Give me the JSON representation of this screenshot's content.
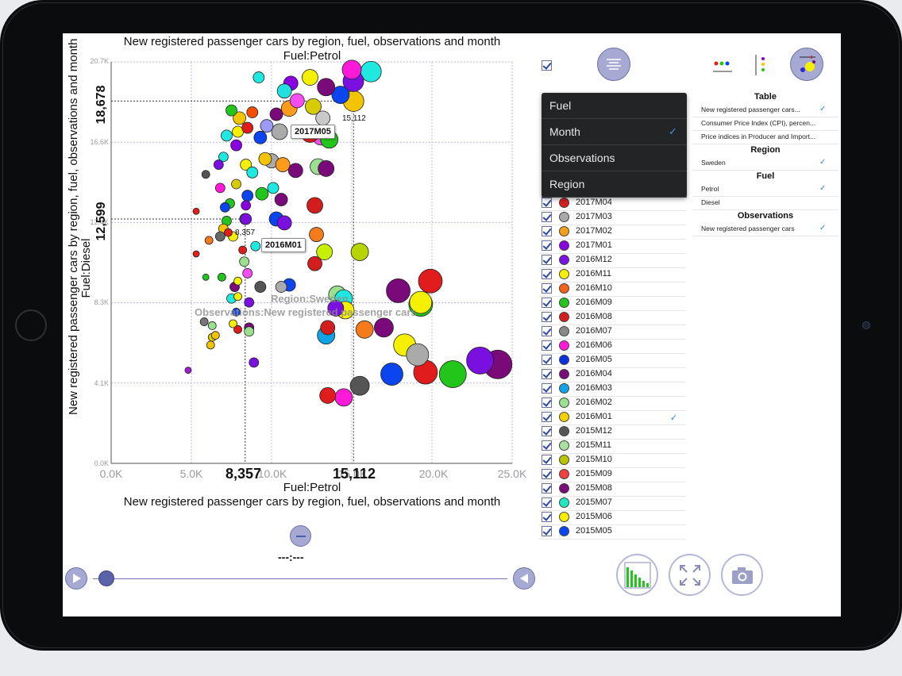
{
  "chart_data": {
    "type": "scatter",
    "title": "New registered passenger cars by region, fuel, observations and month",
    "subtitle": "Fuel:Petrol",
    "xlabel": "Fuel:Petrol",
    "xlabel_title": "New registered passenger cars by region, fuel, observations and month",
    "ylabel": "New registered passenger cars by region, fuel, observations and month",
    "ylabel_sub": "Fuel:Diesel",
    "xlim": [
      0,
      25000
    ],
    "ylim": [
      0,
      20700
    ],
    "x_ticks": [
      "0.0K",
      "5.0K",
      "10.0K",
      "15.0K",
      "20.0K",
      "25.0K"
    ],
    "y_ticks": [
      "0.0K",
      "4.1K",
      "8.3K",
      "12.4K",
      "16.6K",
      "20.7K"
    ],
    "grid": true,
    "crosshair_x": [
      "8,357",
      "15,112"
    ],
    "crosshair_y": [
      "18,678",
      "12,599"
    ],
    "watermark": [
      "Region:Sweden",
      "Observations:New registered passenger cars"
    ],
    "callouts": [
      "2017M05",
      "2016M01"
    ],
    "point_labels": [
      "15,112",
      "8,357"
    ],
    "points": [
      {
        "x": 15112,
        "y": 18678,
        "size": 13,
        "color": "#f5c400"
      },
      {
        "x": 8357,
        "y": 12599,
        "size": 7,
        "color": "#9ae08f"
      },
      {
        "x": 12400,
        "y": 17000,
        "size": 11,
        "color": "#e11c1c"
      },
      {
        "x": 15000,
        "y": 20300,
        "size": 12,
        "color": "#ff1ad9"
      },
      {
        "x": 16200,
        "y": 20200,
        "size": 13,
        "color": "#1fe8e0"
      },
      {
        "x": 15100,
        "y": 19700,
        "size": 13,
        "color": "#7a10e0"
      },
      {
        "x": 14300,
        "y": 19000,
        "size": 11,
        "color": "#0a45f0"
      },
      {
        "x": 13400,
        "y": 19400,
        "size": 11,
        "color": "#7a0a7a"
      },
      {
        "x": 12400,
        "y": 19900,
        "size": 10,
        "color": "#f5f000"
      },
      {
        "x": 11200,
        "y": 19600,
        "size": 9,
        "color": "#8a00e0"
      },
      {
        "x": 10800,
        "y": 19200,
        "size": 9,
        "color": "#22e0e0"
      },
      {
        "x": 11600,
        "y": 18700,
        "size": 9,
        "color": "#f54ef0"
      },
      {
        "x": 9200,
        "y": 19900,
        "size": 7,
        "color": "#1fe8e0"
      },
      {
        "x": 12600,
        "y": 18400,
        "size": 10,
        "color": "#d6cc00"
      },
      {
        "x": 13200,
        "y": 17800,
        "size": 9,
        "color": "#c9c9c9"
      },
      {
        "x": 13100,
        "y": 16900,
        "size": 12,
        "color": "#f54ef0"
      },
      {
        "x": 13600,
        "y": 16700,
        "size": 11,
        "color": "#22c61a"
      },
      {
        "x": 11100,
        "y": 18300,
        "size": 10,
        "color": "#ff9b1a"
      },
      {
        "x": 10300,
        "y": 18000,
        "size": 8,
        "color": "#7a0a7a"
      },
      {
        "x": 10500,
        "y": 17100,
        "size": 10,
        "color": "#aaaaaa"
      },
      {
        "x": 9700,
        "y": 17400,
        "size": 8,
        "color": "#9b9bff"
      },
      {
        "x": 8000,
        "y": 17800,
        "size": 8,
        "color": "#f5c400"
      },
      {
        "x": 8800,
        "y": 18100,
        "size": 7,
        "color": "#f54e00"
      },
      {
        "x": 7500,
        "y": 18200,
        "size": 7,
        "color": "#22c61a"
      },
      {
        "x": 7900,
        "y": 17100,
        "size": 7,
        "color": "#f5f000"
      },
      {
        "x": 7200,
        "y": 16900,
        "size": 7,
        "color": "#1fe8e0"
      },
      {
        "x": 8500,
        "y": 17300,
        "size": 7,
        "color": "#e11c1c"
      },
      {
        "x": 9300,
        "y": 16800,
        "size": 8,
        "color": "#0a45f0"
      },
      {
        "x": 7800,
        "y": 16400,
        "size": 7,
        "color": "#8a00e0"
      },
      {
        "x": 9600,
        "y": 15700,
        "size": 8,
        "color": "#f5c400"
      },
      {
        "x": 10000,
        "y": 15600,
        "size": 9,
        "color": "#aaaaaa"
      },
      {
        "x": 10700,
        "y": 15400,
        "size": 9,
        "color": "#ff9b1a"
      },
      {
        "x": 11500,
        "y": 15100,
        "size": 9,
        "color": "#7a0a7a"
      },
      {
        "x": 12900,
        "y": 15300,
        "size": 10,
        "color": "#9ae08f"
      },
      {
        "x": 13400,
        "y": 15200,
        "size": 10,
        "color": "#7a0a7a"
      },
      {
        "x": 8400,
        "y": 15400,
        "size": 7,
        "color": "#f5f000"
      },
      {
        "x": 8800,
        "y": 15000,
        "size": 7,
        "color": "#1fe8e0"
      },
      {
        "x": 7000,
        "y": 15800,
        "size": 6,
        "color": "#1fe8e0"
      },
      {
        "x": 6700,
        "y": 15400,
        "size": 6,
        "color": "#7a10e0"
      },
      {
        "x": 5900,
        "y": 14900,
        "size": 5,
        "color": "#555555"
      },
      {
        "x": 6800,
        "y": 14200,
        "size": 6,
        "color": "#ff1ad9"
      },
      {
        "x": 7800,
        "y": 14400,
        "size": 6,
        "color": "#d6cc00"
      },
      {
        "x": 10100,
        "y": 14200,
        "size": 7,
        "color": "#1fe8e0"
      },
      {
        "x": 9400,
        "y": 13900,
        "size": 8,
        "color": "#22c61a"
      },
      {
        "x": 10600,
        "y": 13600,
        "size": 8,
        "color": "#7a0a7a"
      },
      {
        "x": 12700,
        "y": 13300,
        "size": 10,
        "color": "#d41e1e"
      },
      {
        "x": 8500,
        "y": 13800,
        "size": 7,
        "color": "#0a45f0"
      },
      {
        "x": 7400,
        "y": 13400,
        "size": 6,
        "color": "#22c61a"
      },
      {
        "x": 7100,
        "y": 13200,
        "size": 6,
        "color": "#0a45f0"
      },
      {
        "x": 8400,
        "y": 13300,
        "size": 6,
        "color": "#8a00e0"
      },
      {
        "x": 5300,
        "y": 13000,
        "size": 4,
        "color": "#e11c1c"
      },
      {
        "x": 10300,
        "y": 12600,
        "size": 9,
        "color": "#0a45f0"
      },
      {
        "x": 10800,
        "y": 12400,
        "size": 9,
        "color": "#7a10e0"
      },
      {
        "x": 8400,
        "y": 12600,
        "size": 7,
        "color": "#7a10e0"
      },
      {
        "x": 7200,
        "y": 12500,
        "size": 6,
        "color": "#22c61a"
      },
      {
        "x": 7000,
        "y": 12100,
        "size": 6,
        "color": "#f5c400"
      },
      {
        "x": 6800,
        "y": 11700,
        "size": 6,
        "color": "#666666"
      },
      {
        "x": 7600,
        "y": 11700,
        "size": 6,
        "color": "#f5f000"
      },
      {
        "x": 6100,
        "y": 11500,
        "size": 5,
        "color": "#f57a1a"
      },
      {
        "x": 7300,
        "y": 11900,
        "size": 5,
        "color": "#e11c1c"
      },
      {
        "x": 12800,
        "y": 11800,
        "size": 9,
        "color": "#f57a1a"
      },
      {
        "x": 8200,
        "y": 11000,
        "size": 5,
        "color": "#e11c1c"
      },
      {
        "x": 9000,
        "y": 11200,
        "size": 6,
        "color": "#1fe8e0"
      },
      {
        "x": 13300,
        "y": 10900,
        "size": 10,
        "color": "#c7f000"
      },
      {
        "x": 15500,
        "y": 10900,
        "size": 11,
        "color": "#b8d400"
      },
      {
        "x": 5300,
        "y": 10800,
        "size": 4,
        "color": "#e11c1c"
      },
      {
        "x": 8300,
        "y": 10400,
        "size": 6,
        "color": "#9ae08f"
      },
      {
        "x": 12700,
        "y": 10300,
        "size": 9,
        "color": "#d41e1e"
      },
      {
        "x": 8500,
        "y": 9800,
        "size": 6,
        "color": "#f54ef0"
      },
      {
        "x": 5900,
        "y": 9600,
        "size": 4,
        "color": "#22c61a"
      },
      {
        "x": 6900,
        "y": 9600,
        "size": 5,
        "color": "#22c61a"
      },
      {
        "x": 7900,
        "y": 9400,
        "size": 5,
        "color": "#f5f000"
      },
      {
        "x": 10600,
        "y": 9100,
        "size": 7,
        "color": "#aaaaaa"
      },
      {
        "x": 11100,
        "y": 9200,
        "size": 8,
        "color": "#0a45f0"
      },
      {
        "x": 9300,
        "y": 9100,
        "size": 7,
        "color": "#555555"
      },
      {
        "x": 7700,
        "y": 9100,
        "size": 6,
        "color": "#7a0a7a"
      },
      {
        "x": 7500,
        "y": 8500,
        "size": 6,
        "color": "#1fe8e0"
      },
      {
        "x": 8600,
        "y": 8300,
        "size": 6,
        "color": "#7a10e0"
      },
      {
        "x": 7900,
        "y": 8600,
        "size": 5,
        "color": "#f5f000"
      },
      {
        "x": 14100,
        "y": 8700,
        "size": 11,
        "color": "#9ae08f"
      },
      {
        "x": 14500,
        "y": 8500,
        "size": 11,
        "color": "#1fe8e0"
      },
      {
        "x": 19900,
        "y": 9400,
        "size": 15,
        "color": "#e11c1c"
      },
      {
        "x": 17900,
        "y": 8900,
        "size": 15,
        "color": "#7a0a7a"
      },
      {
        "x": 19300,
        "y": 8200,
        "size": 15,
        "color": "#22c61a"
      },
      {
        "x": 19300,
        "y": 8300,
        "size": 14,
        "color": "#f5f000"
      },
      {
        "x": 14600,
        "y": 7900,
        "size": 11,
        "color": "#f5f000"
      },
      {
        "x": 14000,
        "y": 8000,
        "size": 10,
        "color": "#7a10e0"
      },
      {
        "x": 7800,
        "y": 7800,
        "size": 5,
        "color": "#0a45f0"
      },
      {
        "x": 5800,
        "y": 7300,
        "size": 5,
        "color": "#777777"
      },
      {
        "x": 6300,
        "y": 7100,
        "size": 5,
        "color": "#9ae08f"
      },
      {
        "x": 7600,
        "y": 7200,
        "size": 5,
        "color": "#f5f000"
      },
      {
        "x": 7900,
        "y": 6900,
        "size": 5,
        "color": "#e11c1c"
      },
      {
        "x": 8600,
        "y": 7000,
        "size": 6,
        "color": "#7a0a7a"
      },
      {
        "x": 8600,
        "y": 6800,
        "size": 6,
        "color": "#9ae08f"
      },
      {
        "x": 15800,
        "y": 6900,
        "size": 11,
        "color": "#f57a1a"
      },
      {
        "x": 17000,
        "y": 7000,
        "size": 12,
        "color": "#7a0a7a"
      },
      {
        "x": 13500,
        "y": 7000,
        "size": 9,
        "color": "#d41e1e"
      },
      {
        "x": 13400,
        "y": 6600,
        "size": 11,
        "color": "#11a3e8"
      },
      {
        "x": 6300,
        "y": 6500,
        "size": 5,
        "color": "#d6cc00"
      },
      {
        "x": 6500,
        "y": 6600,
        "size": 5,
        "color": "#f5c400"
      },
      {
        "x": 6200,
        "y": 6100,
        "size": 5,
        "color": "#f5c400"
      },
      {
        "x": 18300,
        "y": 6100,
        "size": 14,
        "color": "#f5f000"
      },
      {
        "x": 19100,
        "y": 5600,
        "size": 14,
        "color": "#aaaaaa"
      },
      {
        "x": 19600,
        "y": 4700,
        "size": 15,
        "color": "#e11c1c"
      },
      {
        "x": 17500,
        "y": 4600,
        "size": 14,
        "color": "#0a45f0"
      },
      {
        "x": 21300,
        "y": 4600,
        "size": 17,
        "color": "#22c61a"
      },
      {
        "x": 23000,
        "y": 5300,
        "size": 17,
        "color": "#7a10e0"
      },
      {
        "x": 24100,
        "y": 5100,
        "size": 18,
        "color": "#7a0a7a"
      },
      {
        "x": 8900,
        "y": 5200,
        "size": 6,
        "color": "#7a10e0"
      },
      {
        "x": 4800,
        "y": 4800,
        "size": 4,
        "color": "#a020d0"
      },
      {
        "x": 15500,
        "y": 4000,
        "size": 12,
        "color": "#555555"
      },
      {
        "x": 13500,
        "y": 3500,
        "size": 10,
        "color": "#e11c1c"
      },
      {
        "x": 14500,
        "y": 3400,
        "size": 11,
        "color": "#ff1ad9"
      }
    ]
  },
  "dropdown": {
    "items": [
      {
        "label": "Fuel",
        "checked": false
      },
      {
        "label": "Month",
        "checked": true
      },
      {
        "label": "Observations",
        "checked": false
      },
      {
        "label": "Region",
        "checked": false
      }
    ]
  },
  "month_list": [
    {
      "label": "2017M04",
      "color": "#d41e1e",
      "checked": false
    },
    {
      "label": "2017M03",
      "color": "#aaaaaa",
      "checked": false
    },
    {
      "label": "2017M02",
      "color": "#f5a01a",
      "checked": false
    },
    {
      "label": "2017M01",
      "color": "#8a00e0",
      "checked": false
    },
    {
      "label": "2016M12",
      "color": "#7a10e0",
      "checked": false
    },
    {
      "label": "2016M11",
      "color": "#f5f000",
      "checked": false
    },
    {
      "label": "2016M10",
      "color": "#f5621a",
      "checked": false
    },
    {
      "label": "2016M09",
      "color": "#22c61a",
      "checked": false
    },
    {
      "label": "2016M08",
      "color": "#d41e1e",
      "checked": false
    },
    {
      "label": "2016M07",
      "color": "#888888",
      "checked": false
    },
    {
      "label": "2016M06",
      "color": "#ff1ad9",
      "checked": false
    },
    {
      "label": "2016M05",
      "color": "#0a30e0",
      "checked": false
    },
    {
      "label": "2016M04",
      "color": "#7a0a7a",
      "checked": false
    },
    {
      "label": "2016M03",
      "color": "#11a3e8",
      "checked": false
    },
    {
      "label": "2016M02",
      "color": "#9ae08f",
      "checked": false
    },
    {
      "label": "2016M01",
      "color": "#f5d000",
      "checked": true
    },
    {
      "label": "2015M12",
      "color": "#555555",
      "checked": false
    },
    {
      "label": "2015M11",
      "color": "#a8e0a0",
      "checked": false
    },
    {
      "label": "2015M10",
      "color": "#b8c400",
      "checked": false
    },
    {
      "label": "2015M09",
      "color": "#f04040",
      "checked": false
    },
    {
      "label": "2015M08",
      "color": "#7a0a7a",
      "checked": false
    },
    {
      "label": "2015M07",
      "color": "#1fe8c0",
      "checked": false
    },
    {
      "label": "2015M06",
      "color": "#f5f000",
      "checked": false
    },
    {
      "label": "2015M05",
      "color": "#0a45f0",
      "checked": false
    }
  ],
  "right_panel": {
    "sections": [
      {
        "header": "Table",
        "items": [
          {
            "label": "New registered passenger cars...",
            "checked": true
          },
          {
            "label": "Consumer Price Index (CPI), percen...",
            "checked": false
          },
          {
            "label": "Price indices in Producer and Import...",
            "checked": false
          }
        ]
      },
      {
        "header": "Region",
        "items": [
          {
            "label": "Sweden",
            "checked": true
          }
        ]
      },
      {
        "header": "Fuel",
        "items": [
          {
            "label": "Petrol",
            "checked": true
          },
          {
            "label": "Diesel",
            "checked": false
          }
        ]
      },
      {
        "header": "Observations",
        "items": [
          {
            "label": "New registered passenger cars",
            "checked": true
          }
        ]
      }
    ]
  },
  "playback": {
    "time_label": "---:---",
    "progress": 0.04
  },
  "icons": {
    "menu": "list-menu-icon",
    "legend": "legend-icon",
    "bubble_settings": "bubble-chart-icon",
    "play": "play-icon",
    "rewind": "rewind-icon",
    "bar_chart": "bar-chart-icon",
    "fullscreen": "fullscreen-icon",
    "camera": "camera-icon"
  },
  "colors": {
    "accent": "#a6a9d1",
    "check": "#2f7fe0"
  }
}
